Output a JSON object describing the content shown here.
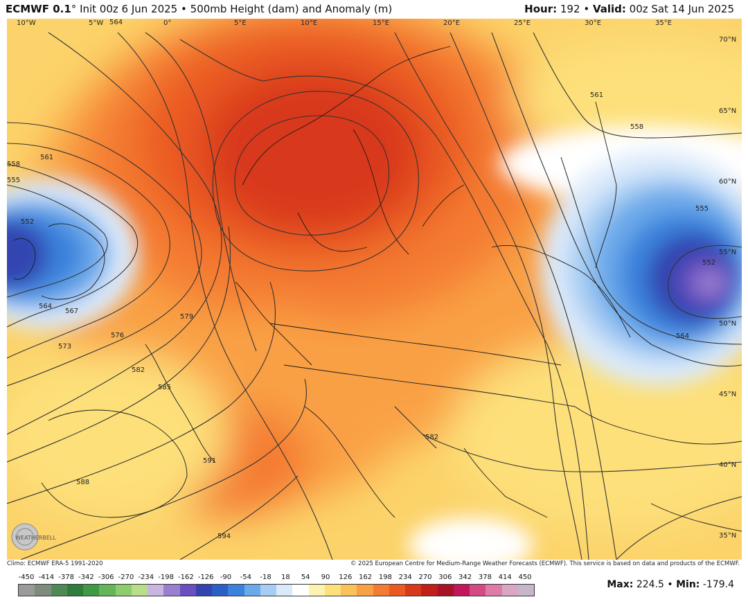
{
  "header": {
    "model": "ECMWF 0.1",
    "degree": "°",
    "init": "Init 00z 6 Jun 2025",
    "bullet": "•",
    "field": "500mb Height (dam) and Anomaly (m)",
    "hour_label": "Hour:",
    "hour_value": "192",
    "valid_label": "Valid:",
    "valid_value": "00z Sat 14 Jun 2025"
  },
  "map": {
    "longitude_labels": [
      "10°W",
      "5°W",
      "0°",
      "5°E",
      "10°E",
      "15°E",
      "20°E",
      "25°E",
      "30°E",
      "35°E"
    ],
    "latitude_labels": [
      "70°N",
      "65°N",
      "60°N",
      "55°N",
      "50°N",
      "45°N",
      "40°N",
      "35°N"
    ],
    "contour_labels": [
      "564",
      "558",
      "555",
      "561",
      "552",
      "564",
      "567",
      "573",
      "576",
      "579",
      "582",
      "585",
      "588",
      "591",
      "594",
      "582",
      "561",
      "558",
      "555",
      "552",
      "564"
    ],
    "logo_text": "WEATHERBELL"
  },
  "footer": {
    "climo": "Climo: ECMWF ERA-5 1991-2020",
    "copyright": "© 2025 European Centre for Medium-Range Weather Forecasts (ECMWF). This service is based on data and products of the ECMWF."
  },
  "legend": {
    "ticks": [
      "-450",
      "-414",
      "-378",
      "-342",
      "-306",
      "-270",
      "-234",
      "-198",
      "-162",
      "-126",
      "-90",
      "-54",
      "-18",
      "18",
      "54",
      "90",
      "126",
      "162",
      "198",
      "234",
      "270",
      "306",
      "342",
      "378",
      "414",
      "450"
    ],
    "colors": [
      "#9a9a9a",
      "#7d8c7d",
      "#4e8a55",
      "#2f7d3a",
      "#3f9a45",
      "#66b55b",
      "#8fcc6c",
      "#b9de8a",
      "#c8b6e0",
      "#9a7fd0",
      "#6a4fc0",
      "#3344b0",
      "#2a5fc8",
      "#3b82dc",
      "#6aa9ea",
      "#a8cdf3",
      "#dbeafb",
      "#ffffff",
      "#fdf3b0",
      "#fde07a",
      "#fcc25a",
      "#f9a044",
      "#f47c32",
      "#ea5a22",
      "#d8391a",
      "#c21f18",
      "#a81425",
      "#c2185b",
      "#d44a86",
      "#e07aa8",
      "#d9a6c4",
      "#c7b5c9"
    ],
    "max_label": "Max:",
    "max_value": "224.5",
    "min_label": "Min:",
    "min_value": "-179.4"
  }
}
